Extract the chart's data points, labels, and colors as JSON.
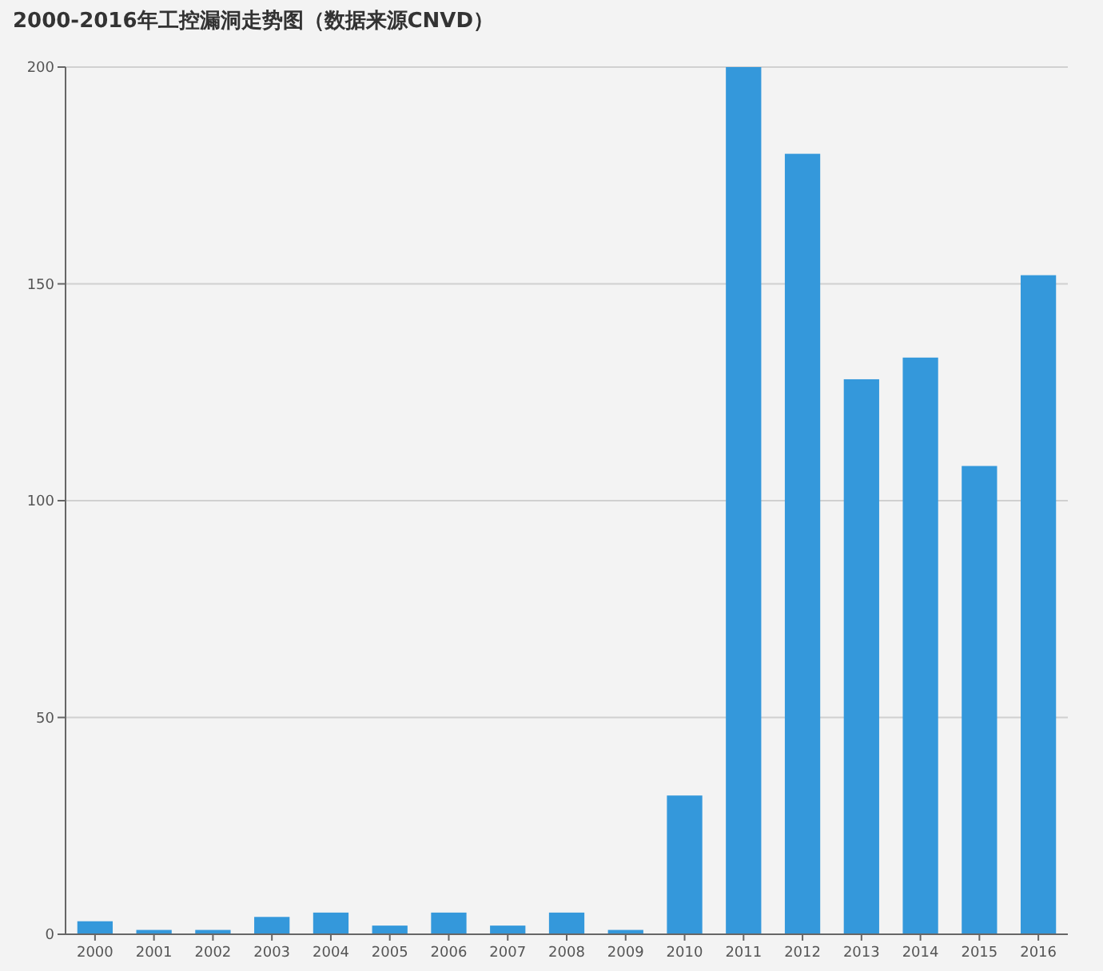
{
  "chart_data": {
    "type": "bar",
    "title": "2000-2016年工控漏洞走势图（数据来源CNVD）",
    "categories": [
      "2000",
      "2001",
      "2002",
      "2003",
      "2004",
      "2005",
      "2006",
      "2007",
      "2008",
      "2009",
      "2010",
      "2011",
      "2012",
      "2013",
      "2014",
      "2015",
      "2016"
    ],
    "values": [
      3,
      1,
      1,
      4,
      5,
      2,
      5,
      2,
      5,
      1,
      32,
      200,
      180,
      128,
      133,
      108,
      152
    ],
    "color": "#3498db",
    "ylim": [
      0,
      200
    ],
    "yticks": [
      0,
      50,
      100,
      150,
      200
    ],
    "grid": "y"
  }
}
